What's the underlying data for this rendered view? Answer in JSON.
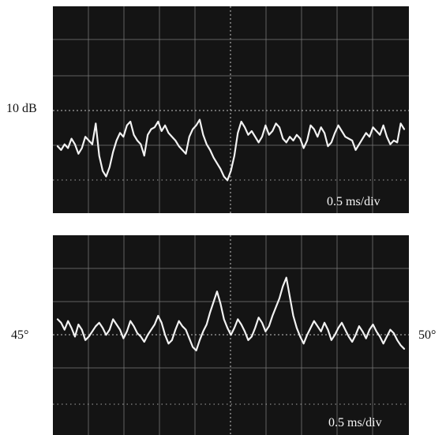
{
  "left_labels": {
    "db": "10 dB"
  },
  "side_labels": {
    "left_angle": "45°",
    "right_angle": "50°"
  },
  "chart_data": [
    {
      "type": "line",
      "annotation": "0.5 ms/div",
      "y_reference_label": "10 dB",
      "grid": true,
      "x": [
        0,
        0.05,
        0.1,
        0.15,
        0.2,
        0.25,
        0.3,
        0.35,
        0.4,
        0.45,
        0.5,
        0.55,
        0.6,
        0.65,
        0.7,
        0.75,
        0.8,
        0.85,
        0.9,
        0.95,
        1.0,
        1.05,
        1.1,
        1.15,
        1.2,
        1.25,
        1.3,
        1.35,
        1.4,
        1.45,
        1.5,
        1.55,
        1.6,
        1.65,
        1.7,
        1.75,
        1.8,
        1.85,
        1.9,
        1.95,
        2.0,
        2.05,
        2.1,
        2.15,
        2.2,
        2.25,
        2.3,
        2.35,
        2.4,
        2.45,
        2.5,
        2.55,
        2.6,
        2.65,
        2.7,
        2.75,
        2.8,
        2.85,
        2.9,
        2.95,
        3.0,
        3.05,
        3.1,
        3.15,
        3.2,
        3.25,
        3.3,
        3.35,
        3.4,
        3.45,
        3.5,
        3.55,
        3.6,
        3.65,
        3.7,
        3.75,
        3.8,
        3.85,
        3.9,
        3.95,
        4.0,
        4.05,
        4.1,
        4.15,
        4.2,
        4.25,
        4.3,
        4.35,
        4.4,
        4.45,
        4.5,
        4.55,
        4.6,
        4.65,
        4.7,
        4.75,
        4.8,
        4.85,
        4.9,
        4.95,
        5.0
      ],
      "values": [
        -0.3,
        -0.5,
        -0.2,
        -0.4,
        0.1,
        -0.2,
        -0.7,
        -0.4,
        0.2,
        0.0,
        -0.2,
        0.9,
        -0.8,
        -1.6,
        -1.9,
        -1.4,
        -0.6,
        0.0,
        0.4,
        0.2,
        0.8,
        1.0,
        0.3,
        0.0,
        -0.2,
        -0.8,
        0.3,
        0.6,
        0.7,
        1.0,
        0.5,
        0.8,
        0.4,
        0.2,
        0.0,
        -0.3,
        -0.5,
        -0.7,
        0.2,
        0.6,
        0.8,
        1.1,
        0.3,
        -0.2,
        -0.5,
        -0.9,
        -1.2,
        -1.5,
        -1.9,
        -2.1,
        -1.6,
        -0.8,
        0.4,
        1.0,
        0.7,
        0.3,
        0.5,
        0.2,
        -0.1,
        0.2,
        0.8,
        0.3,
        0.5,
        0.9,
        0.7,
        0.1,
        -0.1,
        0.2,
        0.0,
        0.3,
        0.1,
        -0.4,
        0.0,
        0.8,
        0.6,
        0.2,
        0.7,
        0.4,
        -0.3,
        -0.1,
        0.4,
        0.8,
        0.5,
        0.2,
        0.1,
        0.0,
        -0.5,
        -0.2,
        0.1,
        0.4,
        0.2,
        0.7,
        0.5,
        0.3,
        0.8,
        0.2,
        -0.2,
        0.0,
        -0.1,
        0.9,
        0.6
      ]
    },
    {
      "type": "line",
      "annotation": "0.5 ms/div",
      "grid": true,
      "x": [
        0,
        0.05,
        0.1,
        0.15,
        0.2,
        0.25,
        0.3,
        0.35,
        0.4,
        0.45,
        0.5,
        0.55,
        0.6,
        0.65,
        0.7,
        0.75,
        0.8,
        0.85,
        0.9,
        0.95,
        1.0,
        1.05,
        1.1,
        1.15,
        1.2,
        1.25,
        1.3,
        1.35,
        1.4,
        1.45,
        1.5,
        1.55,
        1.6,
        1.65,
        1.7,
        1.75,
        1.8,
        1.85,
        1.9,
        1.95,
        2.0,
        2.05,
        2.1,
        2.15,
        2.2,
        2.25,
        2.3,
        2.35,
        2.4,
        2.45,
        2.5,
        2.55,
        2.6,
        2.65,
        2.7,
        2.75,
        2.8,
        2.85,
        2.9,
        2.95,
        3.0,
        3.05,
        3.1,
        3.15,
        3.2,
        3.25,
        3.3,
        3.35,
        3.4,
        3.45,
        3.5,
        3.55,
        3.6,
        3.65,
        3.7,
        3.75,
        3.8,
        3.85,
        3.9,
        3.95,
        4.0,
        4.05,
        4.1,
        4.15,
        4.2,
        4.25,
        4.3,
        4.35,
        4.4,
        4.45,
        4.5,
        4.55,
        4.6,
        4.65,
        4.7,
        4.75,
        4.8,
        4.85,
        4.9,
        4.95,
        5.0
      ],
      "values": [
        0.8,
        0.6,
        0.2,
        0.7,
        0.3,
        -0.2,
        0.5,
        0.2,
        -0.4,
        -0.2,
        0.1,
        0.4,
        0.6,
        0.3,
        -0.1,
        0.2,
        0.8,
        0.5,
        0.2,
        -0.3,
        0.1,
        0.7,
        0.4,
        0.0,
        -0.2,
        -0.5,
        -0.1,
        0.2,
        0.5,
        1.0,
        0.6,
        -0.1,
        -0.6,
        -0.4,
        0.2,
        0.7,
        0.4,
        0.2,
        -0.3,
        -0.8,
        -1.0,
        -0.4,
        0.1,
        0.5,
        1.2,
        1.8,
        2.4,
        1.7,
        0.8,
        0.3,
        -0.1,
        0.3,
        0.8,
        0.5,
        0.1,
        -0.4,
        -0.2,
        0.3,
        0.9,
        0.6,
        0.1,
        0.4,
        1.0,
        1.5,
        2.0,
        2.7,
        3.2,
        2.1,
        1.0,
        0.3,
        -0.2,
        -0.6,
        -0.1,
        0.3,
        0.7,
        0.4,
        0.1,
        0.6,
        0.2,
        -0.4,
        -0.1,
        0.3,
        0.6,
        0.2,
        -0.2,
        -0.5,
        -0.1,
        0.4,
        0.1,
        -0.3,
        0.2,
        0.5,
        0.1,
        -0.2,
        -0.6,
        -0.2,
        0.2,
        0.0,
        -0.4,
        -0.7,
        -0.9
      ]
    }
  ]
}
